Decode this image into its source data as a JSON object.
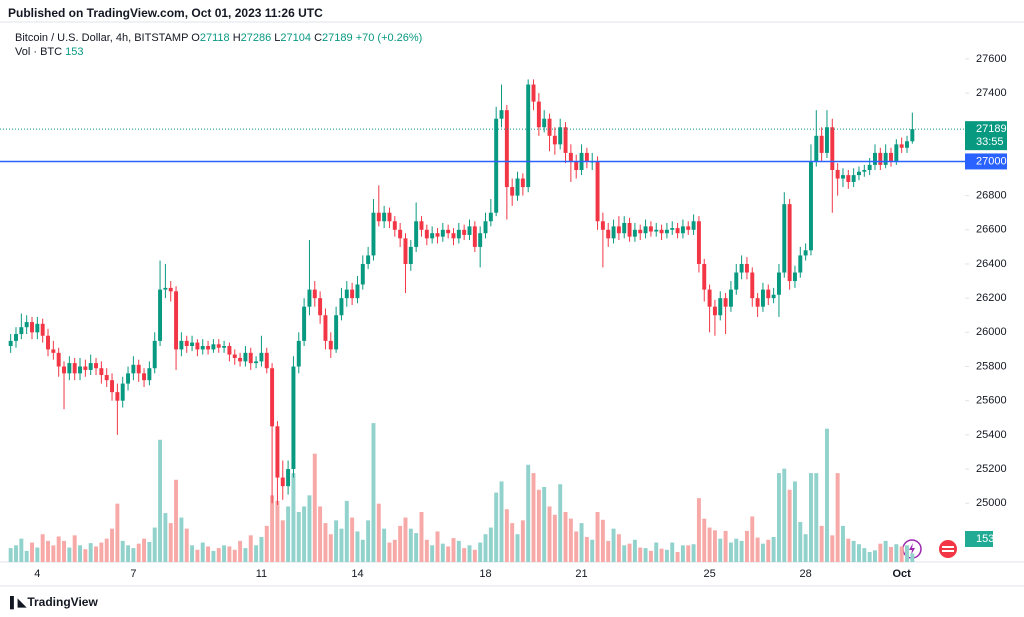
{
  "header": {
    "published": "Published on TradingView.com, Oct 01, 2023 11:26 UTC"
  },
  "footer": {
    "brand": "TradingView"
  },
  "chart_data": {
    "type": "candlestick",
    "legend": {
      "symbol": "Bitcoin / U.S. Dollar, 4h, BITSTAMP",
      "fields": [
        "O",
        "H",
        "L",
        "C"
      ],
      "change": "+70 (+0.26%)",
      "volume_label": "Vol · BTC"
    },
    "countdown": "33:55",
    "hline": 27000,
    "hline_color": "#2962ff",
    "up_color": "#089981",
    "down_color": "#f23645",
    "volume_up_color": "#92d2cc",
    "volume_down_color": "#f7a9a7",
    "grid": false,
    "ylim": [
      24656,
      27816
    ],
    "yticks": [
      25000,
      25200,
      25400,
      25600,
      25800,
      26000,
      26200,
      26400,
      26600,
      26800,
      27000,
      27200,
      27400,
      27600
    ],
    "vlim": [
      0,
      2700
    ],
    "categories": [
      null,
      null,
      null,
      null,
      null,
      "4",
      null,
      null,
      null,
      null,
      null,
      null,
      null,
      null,
      null,
      null,
      null,
      null,
      null,
      null,
      null,
      null,
      null,
      "7",
      null,
      null,
      null,
      null,
      null,
      null,
      null,
      null,
      null,
      null,
      null,
      null,
      null,
      null,
      null,
      null,
      null,
      null,
      null,
      null,
      null,
      null,
      null,
      "11",
      null,
      null,
      null,
      null,
      null,
      null,
      null,
      null,
      null,
      null,
      null,
      null,
      null,
      null,
      null,
      null,
      null,
      "14",
      null,
      null,
      null,
      null,
      null,
      null,
      null,
      null,
      null,
      null,
      null,
      null,
      null,
      null,
      null,
      null,
      null,
      null,
      null,
      null,
      null,
      null,
      null,
      "18",
      null,
      null,
      null,
      null,
      null,
      null,
      null,
      null,
      null,
      null,
      null,
      null,
      null,
      null,
      null,
      null,
      null,
      "21",
      null,
      null,
      null,
      null,
      null,
      null,
      null,
      null,
      null,
      null,
      null,
      null,
      null,
      null,
      null,
      null,
      null,
      null,
      null,
      null,
      null,
      null,
      null,
      "25",
      null,
      null,
      null,
      null,
      null,
      null,
      null,
      null,
      null,
      null,
      null,
      null,
      null,
      null,
      null,
      null,
      null,
      "28",
      null,
      null,
      null,
      null,
      null,
      null,
      null,
      null,
      null,
      null,
      null,
      null,
      null,
      null,
      null,
      null,
      null,
      "Oct",
      null,
      null
    ],
    "ohlc": [
      [
        25920,
        25990,
        25880,
        25950
      ],
      [
        25950,
        26030,
        25910,
        25990
      ],
      [
        25990,
        26110,
        25960,
        26030
      ],
      [
        26030,
        26100,
        25990,
        26060
      ],
      [
        26060,
        26090,
        25960,
        26000
      ],
      [
        26000,
        26090,
        25960,
        26050
      ],
      [
        26050,
        26080,
        25940,
        25980
      ],
      [
        25980,
        26020,
        25860,
        25900
      ],
      [
        25900,
        25950,
        25840,
        25880
      ],
      [
        25880,
        25910,
        25740,
        25800
      ],
      [
        25800,
        25830,
        25550,
        25760
      ],
      [
        25760,
        25860,
        25720,
        25820
      ],
      [
        25820,
        25850,
        25720,
        25760
      ],
      [
        25760,
        25850,
        25720,
        25800
      ],
      [
        25800,
        25840,
        25740,
        25780
      ],
      [
        25780,
        25870,
        25750,
        25820
      ],
      [
        25820,
        25850,
        25750,
        25790
      ],
      [
        25790,
        25830,
        25700,
        25750
      ],
      [
        25750,
        25790,
        25680,
        25720
      ],
      [
        25720,
        25760,
        25600,
        25650
      ],
      [
        25650,
        25700,
        25400,
        25600
      ],
      [
        25600,
        25740,
        25560,
        25700
      ],
      [
        25700,
        25800,
        25660,
        25760
      ],
      [
        25760,
        25860,
        25720,
        25810
      ],
      [
        25810,
        25840,
        25710,
        25760
      ],
      [
        25760,
        25790,
        25680,
        25720
      ],
      [
        25720,
        25830,
        25690,
        25790
      ],
      [
        25790,
        26000,
        25760,
        25950
      ],
      [
        25950,
        26420,
        25920,
        26250
      ],
      [
        26250,
        26400,
        26200,
        26260
      ],
      [
        26260,
        26300,
        26180,
        26240
      ],
      [
        26240,
        26270,
        25780,
        25900
      ],
      [
        25900,
        26000,
        25860,
        25950
      ],
      [
        25950,
        25980,
        25880,
        25920
      ],
      [
        25920,
        25980,
        25890,
        25940
      ],
      [
        25940,
        25960,
        25860,
        25900
      ],
      [
        25900,
        25960,
        25870,
        25920
      ],
      [
        25920,
        25950,
        25870,
        25900
      ],
      [
        25900,
        25960,
        25880,
        25930
      ],
      [
        25930,
        25960,
        25880,
        25910
      ],
      [
        25910,
        25950,
        25880,
        25920
      ],
      [
        25920,
        25940,
        25830,
        25870
      ],
      [
        25870,
        25900,
        25810,
        25850
      ],
      [
        25850,
        25880,
        25800,
        25830
      ],
      [
        25830,
        25920,
        25800,
        25880
      ],
      [
        25880,
        25910,
        25780,
        25820
      ],
      [
        25820,
        25860,
        25790,
        25830
      ],
      [
        25830,
        25980,
        25800,
        25880
      ],
      [
        25880,
        25910,
        25760,
        25790
      ],
      [
        25790,
        25820,
        25000,
        25450
      ],
      [
        25450,
        25480,
        24990,
        25150
      ],
      [
        25150,
        25250,
        25020,
        25100
      ],
      [
        25100,
        25250,
        25050,
        25200
      ],
      [
        25200,
        25860,
        25150,
        25800
      ],
      [
        25800,
        26000,
        25760,
        25950
      ],
      [
        25950,
        26200,
        25920,
        26150
      ],
      [
        26150,
        26540,
        26100,
        26250
      ],
      [
        26250,
        26300,
        26150,
        26200
      ],
      [
        26200,
        26240,
        26050,
        26100
      ],
      [
        26100,
        26140,
        25900,
        25950
      ],
      [
        25950,
        26000,
        25850,
        25900
      ],
      [
        25900,
        26150,
        25880,
        26100
      ],
      [
        26100,
        26260,
        26070,
        26200
      ],
      [
        26200,
        26300,
        26150,
        26250
      ],
      [
        26250,
        26290,
        26160,
        26200
      ],
      [
        26200,
        26330,
        26170,
        26280
      ],
      [
        26280,
        26450,
        26250,
        26400
      ],
      [
        26400,
        26500,
        26370,
        26450
      ],
      [
        26450,
        26780,
        26420,
        26700
      ],
      [
        26700,
        26860,
        26620,
        26650
      ],
      [
        26650,
        26740,
        26610,
        26700
      ],
      [
        26700,
        26730,
        26610,
        26650
      ],
      [
        26650,
        26680,
        26560,
        26600
      ],
      [
        26600,
        26640,
        26500,
        26550
      ],
      [
        26550,
        26580,
        26230,
        26400
      ],
      [
        26400,
        26540,
        26360,
        26500
      ],
      [
        26500,
        26760,
        26470,
        26650
      ],
      [
        26650,
        26680,
        26560,
        26600
      ],
      [
        26600,
        26630,
        26510,
        26550
      ],
      [
        26550,
        26620,
        26520,
        26580
      ],
      [
        26580,
        26610,
        26520,
        26560
      ],
      [
        26560,
        26640,
        26530,
        26600
      ],
      [
        26600,
        26630,
        26550,
        26580
      ],
      [
        26580,
        26610,
        26510,
        26550
      ],
      [
        26550,
        26640,
        26520,
        26600
      ],
      [
        26600,
        26630,
        26540,
        26570
      ],
      [
        26570,
        26660,
        26540,
        26620
      ],
      [
        26620,
        26650,
        26470,
        26500
      ],
      [
        26500,
        26620,
        26380,
        26580
      ],
      [
        26580,
        26700,
        26550,
        26650
      ],
      [
        26650,
        26780,
        26620,
        26700
      ],
      [
        26700,
        27320,
        26680,
        27250
      ],
      [
        27250,
        27450,
        27200,
        27300
      ],
      [
        27300,
        27330,
        26660,
        26850
      ],
      [
        26850,
        26900,
        26740,
        26800
      ],
      [
        26800,
        26940,
        26770,
        26900
      ],
      [
        26900,
        26930,
        26800,
        26850
      ],
      [
        26850,
        27480,
        26820,
        27450
      ],
      [
        27450,
        27480,
        27300,
        27350
      ],
      [
        27350,
        27400,
        27150,
        27200
      ],
      [
        27200,
        27300,
        27170,
        27250
      ],
      [
        27250,
        27280,
        27060,
        27150
      ],
      [
        27150,
        27200,
        27040,
        27100
      ],
      [
        27100,
        27250,
        27070,
        27200
      ],
      [
        27200,
        27230,
        26990,
        27050
      ],
      [
        27050,
        27100,
        26880,
        27000
      ],
      [
        27000,
        27040,
        26900,
        26950
      ],
      [
        26950,
        27100,
        26920,
        27050
      ],
      [
        27050,
        27080,
        26960,
        27000
      ],
      [
        27000,
        27050,
        26950,
        27000
      ],
      [
        27000,
        27030,
        26600,
        26650
      ],
      [
        26650,
        26700,
        26380,
        26600
      ],
      [
        26600,
        26640,
        26500,
        26550
      ],
      [
        26550,
        26660,
        26520,
        26620
      ],
      [
        26620,
        26680,
        26540,
        26580
      ],
      [
        26580,
        26680,
        26550,
        26640
      ],
      [
        26640,
        26670,
        26530,
        26560
      ],
      [
        26560,
        26640,
        26530,
        26600
      ],
      [
        26600,
        26630,
        26540,
        26580
      ],
      [
        26580,
        26660,
        26550,
        26620
      ],
      [
        26620,
        26650,
        26560,
        26590
      ],
      [
        26590,
        26640,
        26560,
        26600
      ],
      [
        26600,
        26630,
        26540,
        26580
      ],
      [
        26580,
        26640,
        26550,
        26600
      ],
      [
        26600,
        26650,
        26570,
        26610
      ],
      [
        26610,
        26640,
        26550,
        26580
      ],
      [
        26580,
        26660,
        26550,
        26620
      ],
      [
        26620,
        26650,
        26570,
        26600
      ],
      [
        26600,
        26690,
        26570,
        26650
      ],
      [
        26650,
        26680,
        26350,
        26400
      ],
      [
        26400,
        26430,
        26180,
        26250
      ],
      [
        26250,
        26280,
        26000,
        26150
      ],
      [
        26150,
        26190,
        25980,
        26100
      ],
      [
        26100,
        26240,
        26070,
        26200
      ],
      [
        26200,
        26230,
        25990,
        26150
      ],
      [
        26150,
        26300,
        26120,
        26250
      ],
      [
        26250,
        26400,
        26220,
        26350
      ],
      [
        26350,
        26450,
        26310,
        26400
      ],
      [
        26400,
        26440,
        26310,
        26350
      ],
      [
        26350,
        26380,
        26150,
        26200
      ],
      [
        26200,
        26230,
        26090,
        26150
      ],
      [
        26150,
        26290,
        26120,
        26250
      ],
      [
        26250,
        26280,
        26160,
        26200
      ],
      [
        26200,
        26260,
        26170,
        26220
      ],
      [
        26220,
        26400,
        26090,
        26350
      ],
      [
        26350,
        26820,
        26320,
        26750
      ],
      [
        26750,
        26780,
        26250,
        26300
      ],
      [
        26300,
        26390,
        26260,
        26350
      ],
      [
        26350,
        26500,
        26320,
        26450
      ],
      [
        26450,
        26520,
        26420,
        26480
      ],
      [
        26480,
        27100,
        26450,
        27000
      ],
      [
        27000,
        27300,
        26970,
        27150
      ],
      [
        27150,
        27200,
        27000,
        27050
      ],
      [
        27050,
        27300,
        27020,
        27200
      ],
      [
        27200,
        27250,
        26700,
        26950
      ],
      [
        26950,
        26990,
        26800,
        26900
      ],
      [
        26900,
        26960,
        26850,
        26920
      ],
      [
        26920,
        26950,
        26840,
        26880
      ],
      [
        26880,
        26960,
        26850,
        26920
      ],
      [
        26920,
        26970,
        26890,
        26940
      ],
      [
        26940,
        26980,
        26910,
        26950
      ],
      [
        26950,
        27020,
        26920,
        26980
      ],
      [
        26980,
        27100,
        26950,
        27050
      ],
      [
        27050,
        27080,
        26950,
        26980
      ],
      [
        26980,
        27100,
        26960,
        27050
      ],
      [
        27050,
        27080,
        26970,
        27000
      ],
      [
        27000,
        27130,
        26980,
        27100
      ],
      [
        27100,
        27140,
        27050,
        27080
      ],
      [
        27080,
        27150,
        27050,
        27118
      ],
      [
        27118,
        27286,
        27104,
        27189
      ]
    ],
    "volume": [
      250,
      300,
      420,
      200,
      350,
      260,
      500,
      380,
      300,
      460,
      380,
      260,
      480,
      300,
      230,
      340,
      280,
      350,
      420,
      600,
      1050,
      380,
      300,
      250,
      330,
      420,
      360,
      620,
      2200,
      880,
      700,
      1480,
      800,
      600,
      300,
      220,
      350,
      280,
      200,
      250,
      300,
      280,
      220,
      380,
      250,
      480,
      300,
      450,
      650,
      1200,
      1100,
      750,
      1000,
      1600,
      900,
      1000,
      1200,
      1950,
      1000,
      700,
      500,
      750,
      600,
      1100,
      800,
      550,
      400,
      750,
      2500,
      1050,
      600,
      350,
      400,
      650,
      800,
      600,
      520,
      900,
      400,
      300,
      550,
      330,
      280,
      430,
      380,
      250,
      300,
      220,
      350,
      500,
      620,
      1250,
      1450,
      950,
      700,
      500,
      750,
      1750,
      1600,
      1300,
      1350,
      1000,
      850,
      1400,
      900,
      780,
      550,
      700,
      450,
      400,
      900,
      760,
      380,
      600,
      500,
      300,
      330,
      400,
      260,
      250,
      200,
      350,
      240,
      220,
      350,
      180,
      300,
      300,
      320,
      1150,
      780,
      620,
      570,
      420,
      560,
      350,
      420,
      380,
      560,
      820,
      440,
      330,
      400,
      450,
      1600,
      1680,
      1300,
      1450,
      720,
      500,
      1600,
      1600,
      650,
      2400,
      480,
      1600,
      650,
      420,
      380,
      320,
      250,
      180,
      210,
      330,
      380,
      270,
      320,
      280,
      300,
      153
    ]
  }
}
